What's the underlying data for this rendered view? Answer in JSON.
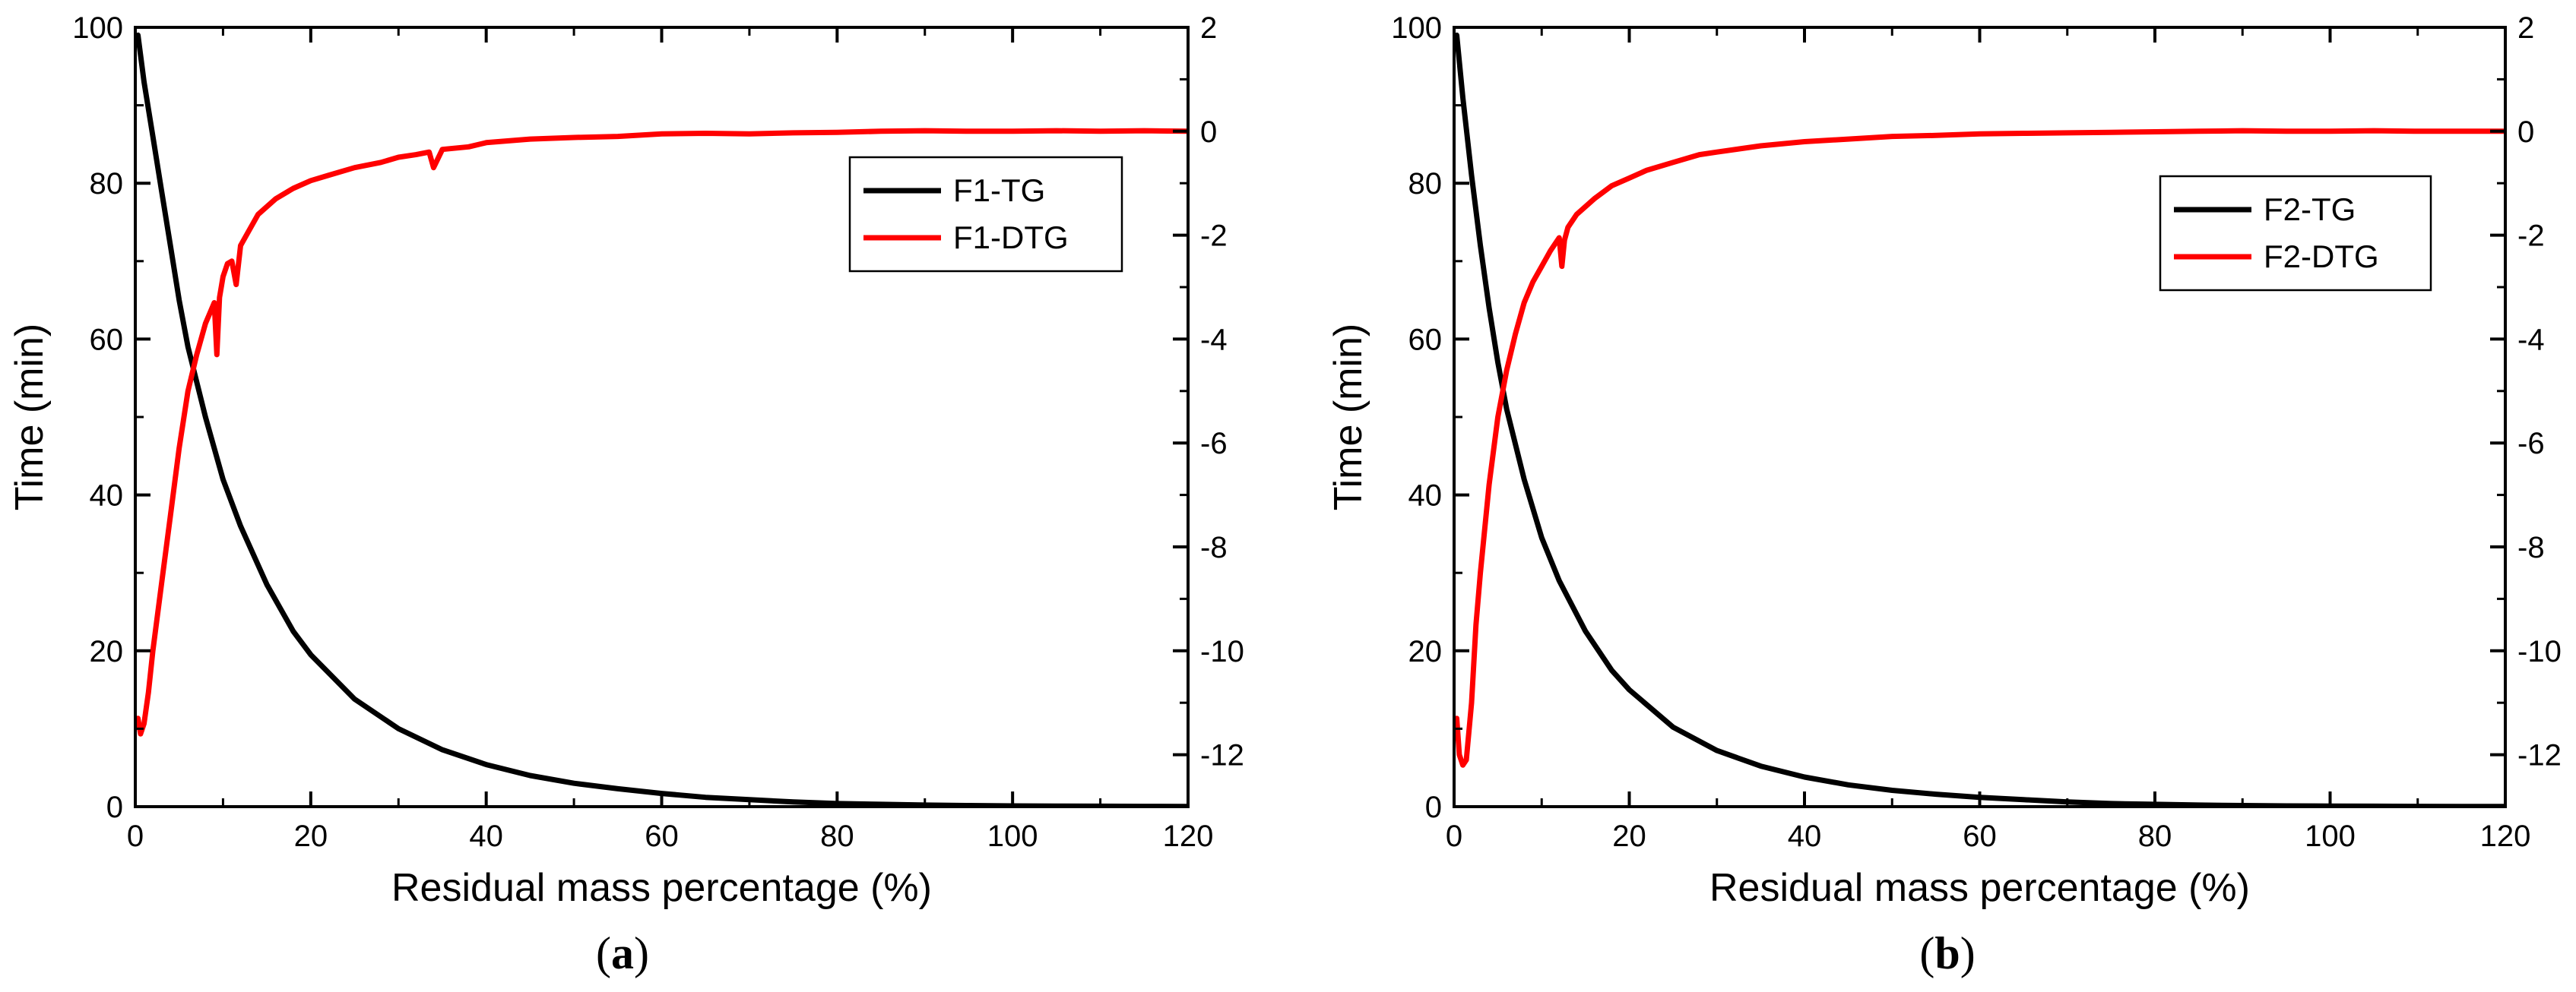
{
  "chart_data": [
    {
      "type": "line",
      "panel_label_open": "(",
      "panel_label_letter": "a",
      "panel_label_close": ")",
      "xlabel": "Residual mass percentage (%)",
      "ylabel": "Time (min)",
      "xlim": [
        0,
        120
      ],
      "ylim": [
        0,
        100
      ],
      "y2lim": [
        -13,
        2
      ],
      "xticks": [
        "0",
        "20",
        "40",
        "60",
        "80",
        "100",
        "120"
      ],
      "yticks": [
        "0",
        "20",
        "40",
        "60",
        "80",
        "100"
      ],
      "y2ticks": [
        "-12",
        "-10",
        "-8",
        "-6",
        "-4",
        "-2",
        "0",
        "2"
      ],
      "legend_position": "top-right",
      "series": [
        {
          "name": "F1-TG",
          "axis": "left",
          "color": "#000000",
          "x": [
            0.3,
            1,
            2,
            3,
            4,
            5,
            6,
            8,
            10,
            12,
            15,
            18,
            20,
            25,
            30,
            35,
            40,
            45,
            50,
            55,
            60,
            65,
            70,
            75,
            80,
            85,
            90,
            95,
            100,
            105,
            110,
            115,
            120
          ],
          "y": [
            99,
            93,
            86,
            79,
            72,
            65,
            59,
            50,
            42,
            36,
            28.5,
            22.5,
            19.5,
            13.8,
            10,
            7.3,
            5.4,
            4,
            3,
            2.3,
            1.7,
            1.2,
            0.9,
            0.6,
            0.4,
            0.3,
            0.2,
            0.15,
            0.1,
            0.08,
            0.06,
            0.04,
            0.03
          ]
        },
        {
          "name": "F1-DTG",
          "axis": "right",
          "color": "#ff0000",
          "x": [
            0.3,
            0.6,
            1,
            1.5,
            2,
            3,
            4,
            5,
            6,
            7,
            8,
            8.5,
            9,
            9.3,
            9.6,
            10,
            10.5,
            11,
            11.5,
            12,
            13,
            14,
            16,
            18,
            20,
            22,
            25,
            28,
            30,
            32,
            33.5,
            34,
            35,
            38,
            40,
            45,
            50,
            55,
            60,
            65,
            70,
            75,
            80,
            85,
            90,
            95,
            100,
            105,
            110,
            115,
            120
          ],
          "y": [
            -11.3,
            -11.6,
            -11.4,
            -10.8,
            -10,
            -8.7,
            -7.4,
            -6.1,
            -5,
            -4.3,
            -3.7,
            -3.5,
            -3.3,
            -4.3,
            -3.2,
            -2.8,
            -2.55,
            -2.5,
            -2.95,
            -2.2,
            -1.9,
            -1.6,
            -1.3,
            -1.1,
            -0.95,
            -0.85,
            -0.7,
            -0.6,
            -0.5,
            -0.45,
            -0.4,
            -0.7,
            -0.35,
            -0.3,
            -0.22,
            -0.15,
            -0.12,
            -0.1,
            -0.05,
            -0.04,
            -0.05,
            -0.03,
            -0.02,
            0,
            0.01,
            0,
            0,
            0.01,
            0,
            0.01,
            0
          ]
        }
      ]
    },
    {
      "type": "line",
      "panel_label_open": "(",
      "panel_label_letter": "b",
      "panel_label_close": ")",
      "xlabel": "Residual mass percentage (%)",
      "ylabel": "Time (min)",
      "xlim": [
        0,
        120
      ],
      "ylim": [
        0,
        100
      ],
      "y2lim": [
        -13,
        2
      ],
      "xticks": [
        "0",
        "20",
        "40",
        "60",
        "80",
        "100",
        "120"
      ],
      "yticks": [
        "0",
        "20",
        "40",
        "60",
        "80",
        "100"
      ],
      "y2ticks": [
        "-12",
        "-10",
        "-8",
        "-6",
        "-4",
        "-2",
        "0",
        "2"
      ],
      "legend_position": "top-right",
      "series": [
        {
          "name": "F2-TG",
          "axis": "left",
          "color": "#000000",
          "x": [
            0.3,
            1,
            2,
            3,
            4,
            5,
            6,
            8,
            10,
            12,
            15,
            18,
            20,
            25,
            30,
            35,
            40,
            45,
            50,
            55,
            60,
            65,
            70,
            75,
            80,
            85,
            90,
            95,
            100,
            105,
            110,
            115,
            120
          ],
          "y": [
            99,
            91,
            81,
            72,
            64,
            57,
            51,
            42,
            34.5,
            29,
            22.5,
            17.5,
            15,
            10.2,
            7.2,
            5.2,
            3.8,
            2.8,
            2.1,
            1.6,
            1.2,
            0.9,
            0.6,
            0.4,
            0.3,
            0.2,
            0.15,
            0.1,
            0.08,
            0.06,
            0.04,
            0.03,
            0.02
          ]
        },
        {
          "name": "F2-DTG",
          "axis": "right",
          "color": "#ff0000",
          "x": [
            0.3,
            0.6,
            1,
            1.4,
            2,
            2.5,
            3,
            4,
            5,
            6,
            7,
            8,
            9,
            10,
            11,
            12,
            12.3,
            12.6,
            13,
            14,
            16,
            18,
            20,
            22,
            25,
            28,
            30,
            35,
            40,
            45,
            50,
            55,
            60,
            65,
            70,
            75,
            80,
            85,
            90,
            95,
            100,
            105,
            110,
            115,
            120
          ],
          "y": [
            -11.3,
            -12,
            -12.2,
            -12.1,
            -11,
            -9.5,
            -8.5,
            -6.8,
            -5.5,
            -4.6,
            -3.9,
            -3.3,
            -2.9,
            -2.6,
            -2.3,
            -2.05,
            -2.6,
            -2.1,
            -1.85,
            -1.6,
            -1.3,
            -1.05,
            -0.9,
            -0.75,
            -0.6,
            -0.45,
            -0.4,
            -0.28,
            -0.2,
            -0.15,
            -0.1,
            -0.08,
            -0.05,
            -0.04,
            -0.03,
            -0.02,
            -0.01,
            0,
            0.01,
            0,
            0,
            0.01,
            0,
            0,
            0
          ]
        }
      ]
    }
  ]
}
